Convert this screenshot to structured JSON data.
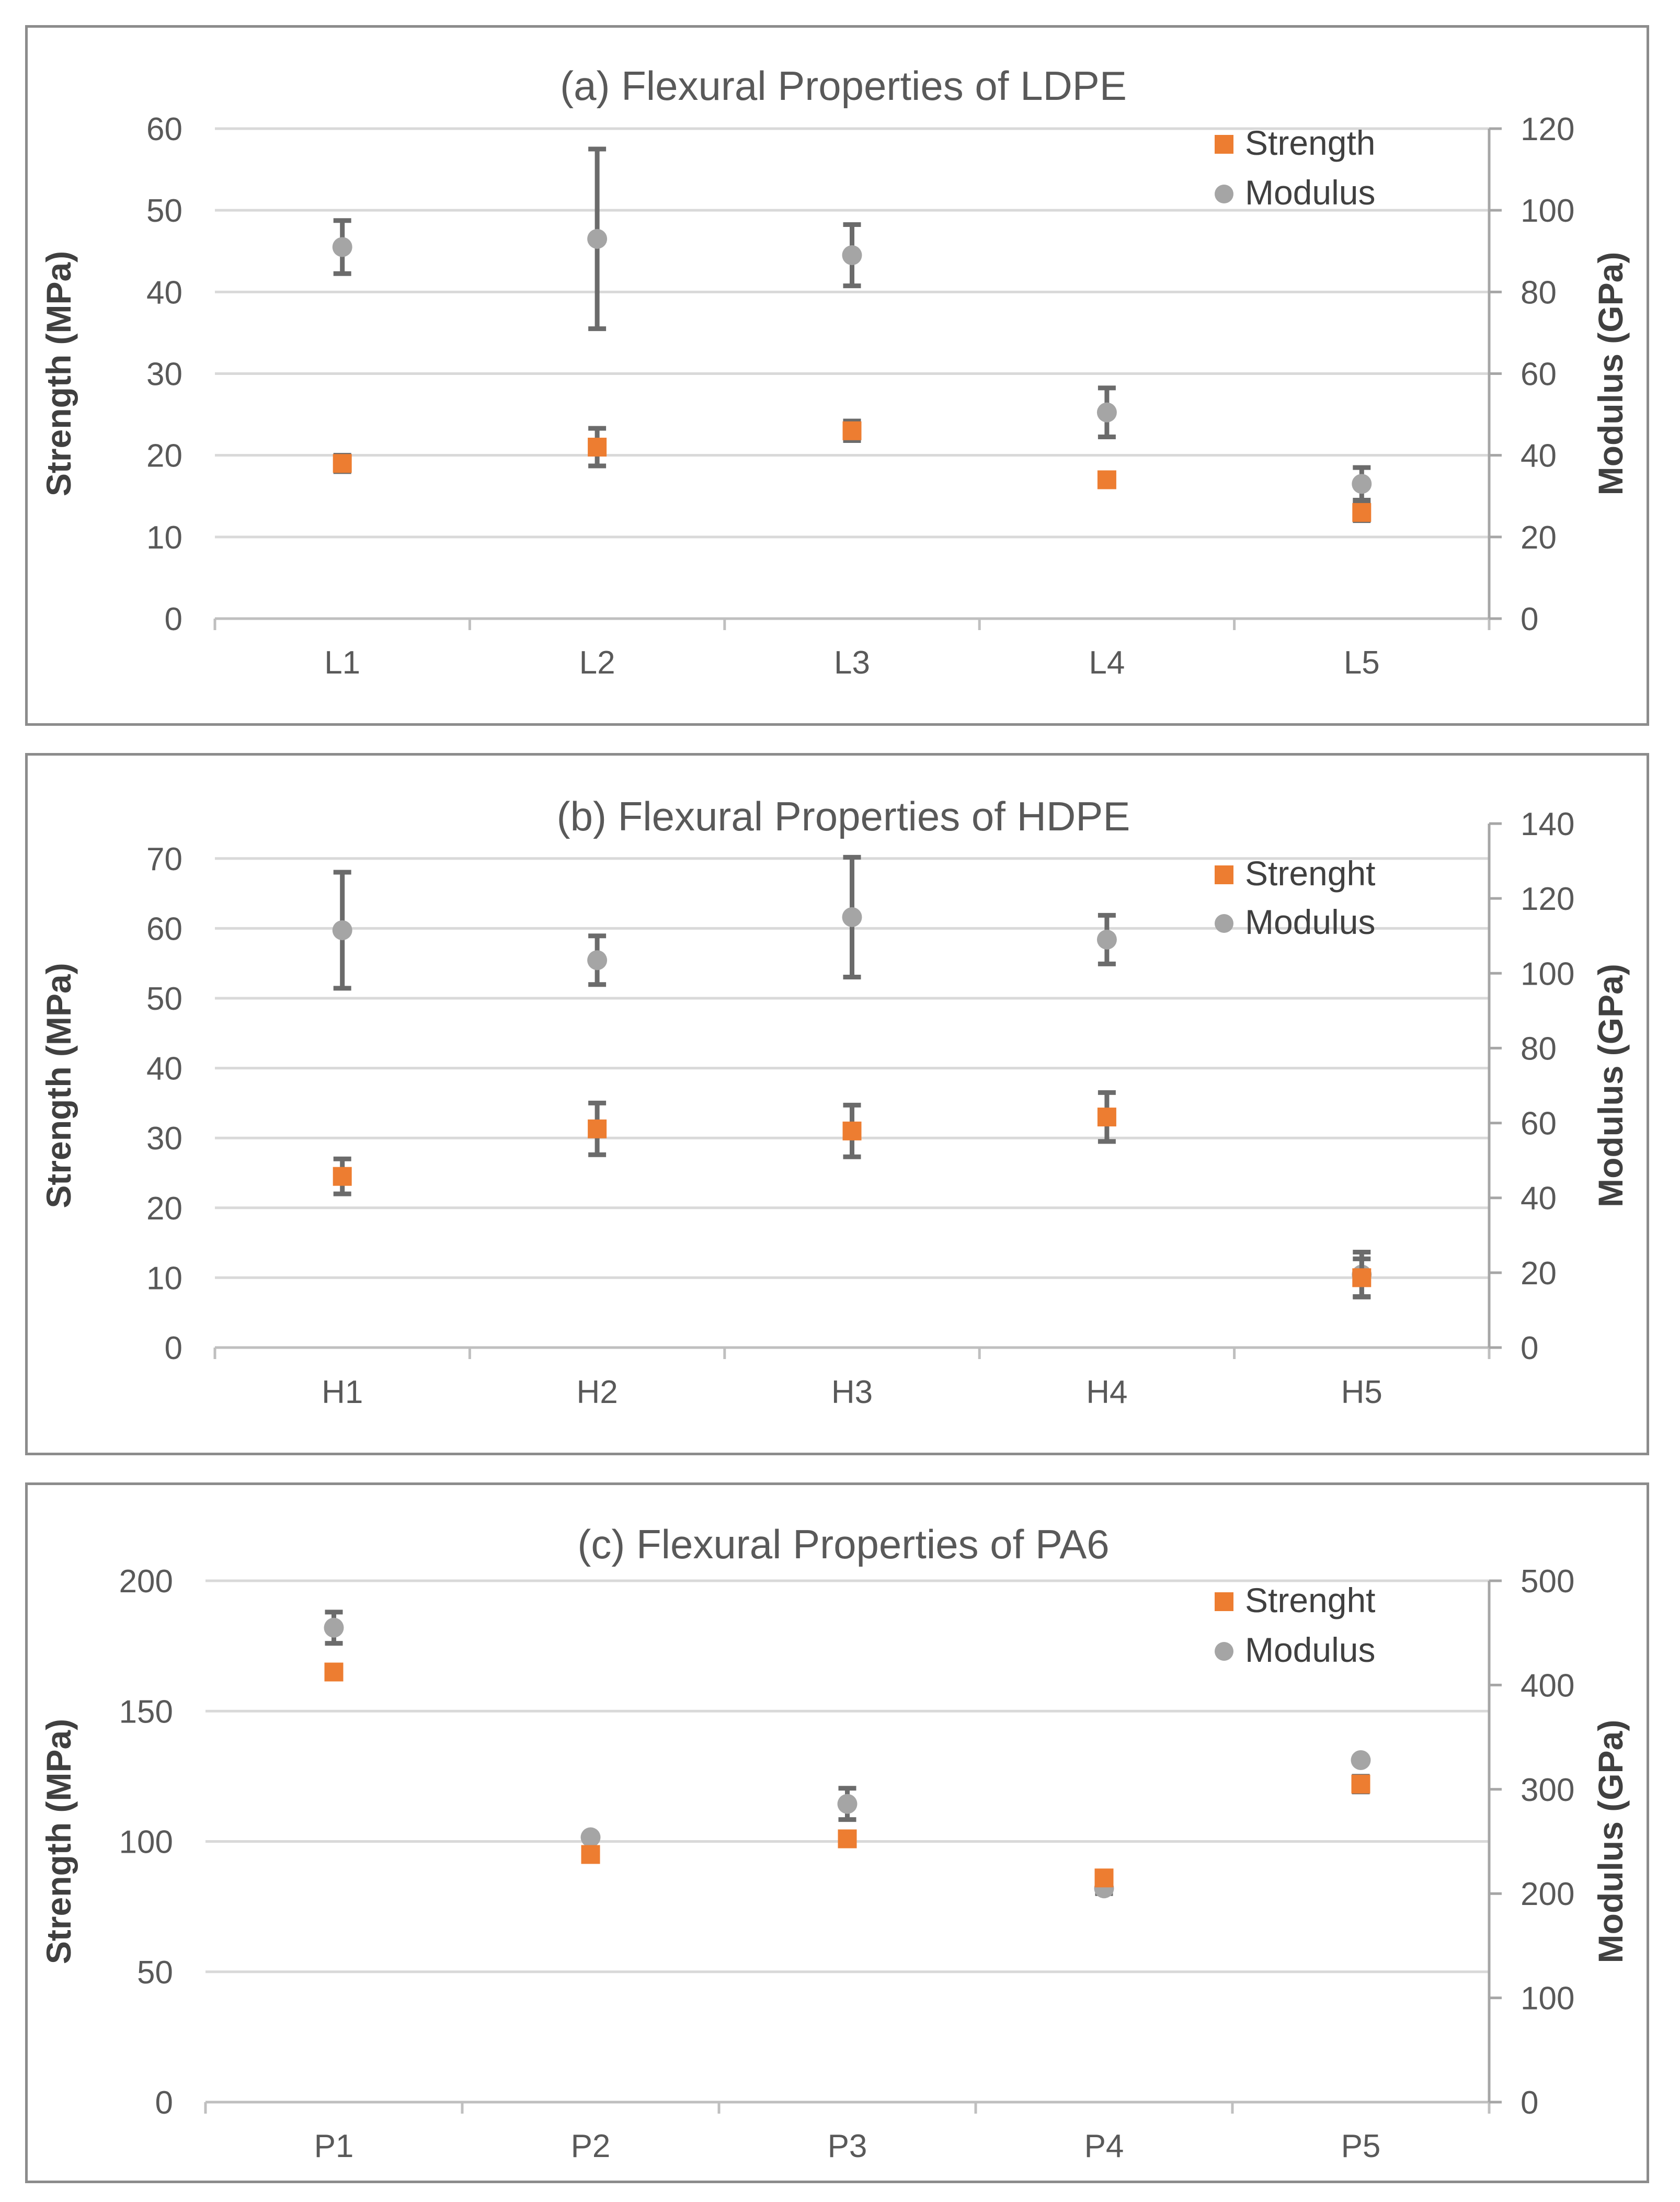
{
  "chart_data": [
    {
      "type": "scatter",
      "title": "(a) Flexural Properties of LDPE",
      "categories": [
        "L1",
        "L2",
        "L3",
        "L4",
        "L5"
      ],
      "ylabel": "Strength (MPa)",
      "y2label": "Modulus (GPa)",
      "ylim": [
        0,
        60
      ],
      "y2lim": [
        0,
        120
      ],
      "yticks": [
        "0",
        "10",
        "20",
        "30",
        "40",
        "50",
        "60"
      ],
      "y2ticks": [
        "0",
        "20",
        "40",
        "60",
        "80",
        "100",
        "120"
      ],
      "grid": true,
      "legend": "top-right",
      "series": [
        {
          "name": "Strength",
          "axis": "left",
          "marker": "square",
          "color": "#ed7d31",
          "values": [
            19,
            21,
            23,
            17,
            13
          ],
          "errors": [
            1,
            2.3,
            1.2,
            0,
            1
          ]
        },
        {
          "name": "Modulus",
          "axis": "right",
          "marker": "circle",
          "color": "#a5a5a5",
          "values": [
            91,
            93,
            89,
            50.5,
            33
          ],
          "errors": [
            6.5,
            22,
            7.5,
            6,
            4
          ]
        }
      ]
    },
    {
      "type": "scatter",
      "title": "(b) Flexural Properties of HDPE",
      "categories": [
        "H1",
        "H2",
        "H3",
        "H4",
        "H5"
      ],
      "ylabel": "Strength (MPa)",
      "y2label": "Modulus (GPa)",
      "ylim": [
        0,
        75
      ],
      "y2lim": [
        0,
        140
      ],
      "yticks": [
        "0",
        "10",
        "20",
        "30",
        "40",
        "50",
        "60",
        "70"
      ],
      "y2ticks": [
        "0",
        "20",
        "40",
        "60",
        "80",
        "100",
        "120",
        "140"
      ],
      "grid": true,
      "legend": "top-right",
      "series": [
        {
          "name": "Strenght",
          "axis": "left",
          "marker": "square",
          "color": "#ed7d31",
          "values": [
            24.5,
            31.3,
            31,
            33,
            10
          ],
          "errors": [
            2.5,
            3.7,
            3.7,
            3.5,
            2.7
          ]
        },
        {
          "name": "Modulus",
          "axis": "right",
          "marker": "circle",
          "color": "#a5a5a5",
          "values": [
            111.5,
            103.5,
            115,
            109,
            19.5
          ],
          "errors": [
            15.5,
            6.5,
            16,
            6.5,
            6
          ]
        }
      ]
    },
    {
      "type": "scatter",
      "title": "(c) Flexural Properties of PA6",
      "categories": [
        "P1",
        "P2",
        "P3",
        "P4",
        "P5"
      ],
      "ylabel": "Strength (MPa)",
      "y2label": "Modulus (GPa)",
      "ylim": [
        0,
        200
      ],
      "y2lim": [
        0,
        500
      ],
      "yticks": [
        "0",
        "50",
        "100",
        "150",
        "200"
      ],
      "y2ticks": [
        "0",
        "100",
        "200",
        "300",
        "400",
        "500"
      ],
      "grid": true,
      "legend": "top-right",
      "series": [
        {
          "name": "Strenght",
          "axis": "left",
          "marker": "square",
          "color": "#ed7d31",
          "values": [
            165,
            95,
            101,
            86,
            122
          ],
          "errors": [
            0,
            0,
            0,
            0,
            3
          ]
        },
        {
          "name": "Modulus",
          "axis": "right",
          "marker": "circle",
          "color": "#a5a5a5",
          "values": [
            455,
            254,
            286,
            205,
            328
          ],
          "errors": [
            15,
            0,
            15,
            5,
            0
          ]
        }
      ]
    }
  ]
}
